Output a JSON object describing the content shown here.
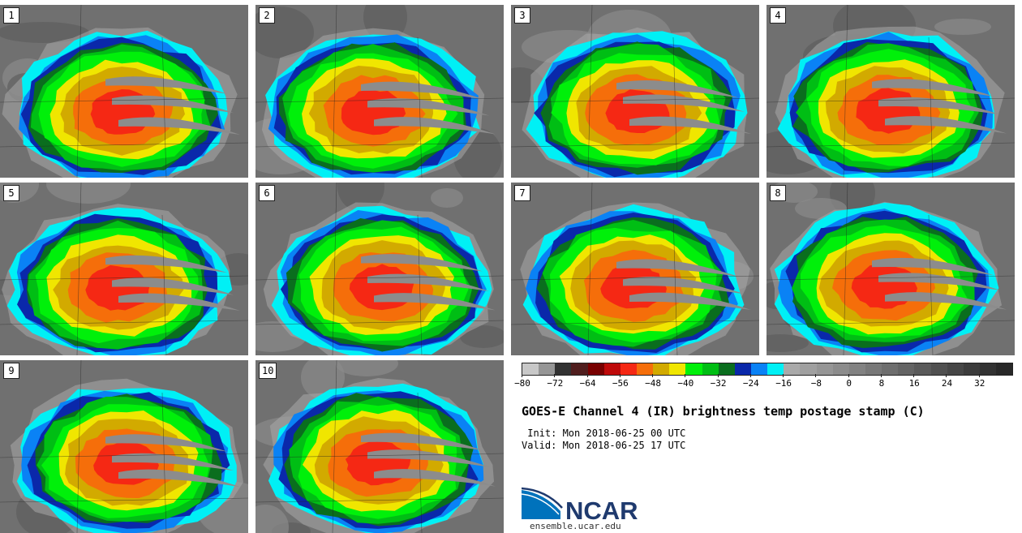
{
  "panels": [
    {
      "label": "1",
      "seed": 1
    },
    {
      "label": "2",
      "seed": 2
    },
    {
      "label": "3",
      "seed": 3
    },
    {
      "label": "4",
      "seed": 4
    },
    {
      "label": "5",
      "seed": 5
    },
    {
      "label": "6",
      "seed": 6
    },
    {
      "label": "7",
      "seed": 7
    },
    {
      "label": "8",
      "seed": 8
    },
    {
      "label": "9",
      "seed": 9
    },
    {
      "label": "10",
      "seed": 10
    }
  ],
  "colorbar": {
    "colors": [
      "#c8c8c8",
      "#969696",
      "#323232",
      "#501e1e",
      "#780000",
      "#be0a0a",
      "#f52814",
      "#f56e0a",
      "#d2aa00",
      "#f0e600",
      "#00f00a",
      "#00be14",
      "#0a6e1e",
      "#0a28aa",
      "#0a82f5",
      "#00f0f5",
      "#aaaaaa",
      "#a0a0a0",
      "#969696",
      "#8c8c8c",
      "#828282",
      "#787878",
      "#6e6e6e",
      "#646464",
      "#5a5a5a",
      "#505050",
      "#464646",
      "#3c3c3c",
      "#323232",
      "#282828"
    ],
    "ticks": [
      "−80",
      "−72",
      "−64",
      "−56",
      "−48",
      "−40",
      "−32",
      "−24",
      "−16",
      "−8",
      "0",
      "8",
      "16",
      "24",
      "32"
    ]
  },
  "title": "GOES-E Channel 4 (IR) brightness temp postage stamp (C)",
  "init_line": " Init: Mon 2018-06-25 00 UTC",
  "valid_line": "Valid: Mon 2018-06-25 17 UTC",
  "logo": {
    "name": "NCAR",
    "colors": {
      "blue": "#0072bc",
      "navy": "#1f3a6e"
    }
  },
  "site": "ensemble.ucar.edu",
  "storm_colors": {
    "outer": "#aaaaaa",
    "cyan": "#00f0f5",
    "blue": "#0a82f5",
    "navy": "#0a28aa",
    "darkgreen": "#0a6e1e",
    "green": "#00be14",
    "lime": "#00f00a",
    "yellow": "#f0e600",
    "gold": "#d2aa00",
    "orange": "#f56e0a",
    "red": "#f52814"
  }
}
